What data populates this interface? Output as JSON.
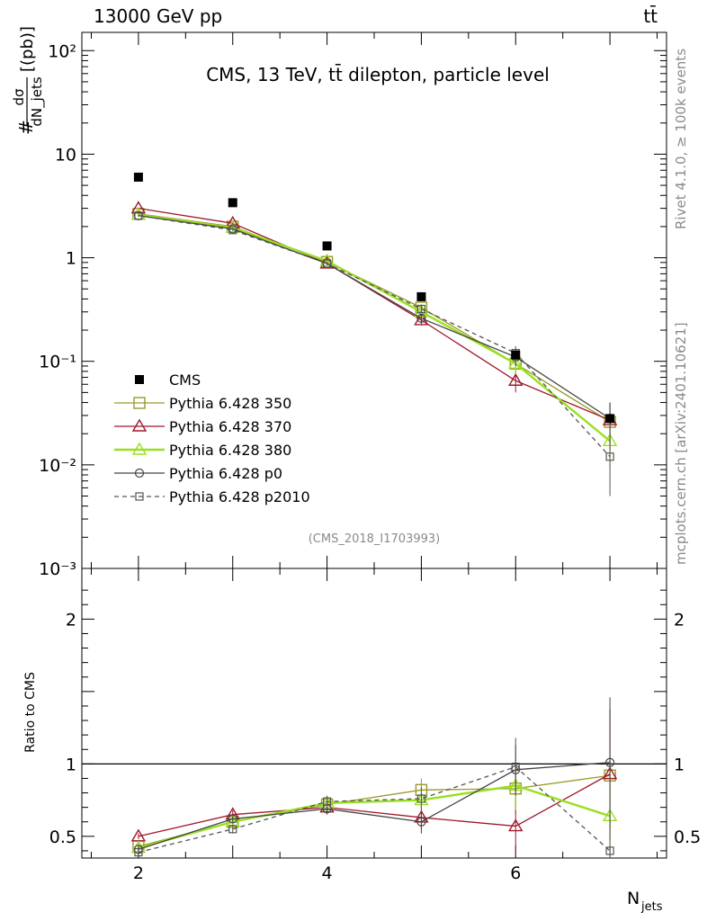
{
  "header": {
    "left": "13000 GeV pp",
    "right": "tt̄"
  },
  "side_labels": {
    "rivet": "Rivet 4.1.0, ≥ 100k events",
    "mcplots": "mcplots.cern.ch [arXiv:2401.10621]"
  },
  "chart_data": [
    {
      "type": "line",
      "panel": "main",
      "title": "CMS, 13 TeV, tt̄ dilepton, particle level",
      "analysis_id": "(CMS_2018_I1703993)",
      "xlabel": "N_jets",
      "ylabel_prefix": "#",
      "ylabel_frac_num": "dσ",
      "ylabel_frac_den": "dN_jets",
      "ylabel_unit": "[(pb)]",
      "yscale": "log",
      "xlim": [
        1.4,
        7.6
      ],
      "ylim": [
        0.001,
        150
      ],
      "ytick_values": [
        0.001,
        0.01,
        0.1,
        1,
        10,
        100
      ],
      "ytick_labels": [
        "10⁻³",
        "10⁻²",
        "10⁻¹",
        "1",
        "10",
        "10²"
      ],
      "x": [
        2,
        3,
        4,
        5,
        6,
        7
      ],
      "series": [
        {
          "name": "CMS",
          "color": "#000000",
          "marker": "filled-square",
          "line": "none",
          "values": [
            6.0,
            3.4,
            1.3,
            0.42,
            0.115,
            0.028
          ],
          "errors": [
            0.2,
            0.12,
            0.05,
            0.02,
            0.006,
            0.003
          ]
        },
        {
          "name": "Pythia 6.428 350",
          "color": "#9a9a2a",
          "marker": "open-square",
          "line": "solid",
          "values": [
            2.65,
            2.0,
            0.91,
            0.33,
            0.095,
            0.026
          ],
          "errors": [
            0.05,
            0.04,
            0.03,
            0.025,
            0.02,
            0.012
          ]
        },
        {
          "name": "Pythia 6.428 370",
          "color": "#a0182c",
          "marker": "open-triangle",
          "line": "solid",
          "values": [
            3.0,
            2.15,
            0.88,
            0.25,
            0.065,
            0.027
          ],
          "errors": [
            0.06,
            0.05,
            0.03,
            0.025,
            0.015,
            0.013
          ]
        },
        {
          "name": "Pythia 6.428 380",
          "color": "#99e020",
          "marker": "open-triangle",
          "line": "solid-thick",
          "values": [
            2.6,
            1.95,
            0.93,
            0.3,
            0.095,
            0.017
          ],
          "errors": [
            0.05,
            0.04,
            0.03,
            0.025,
            0.02,
            0.008
          ]
        },
        {
          "name": "Pythia 6.428 p0",
          "color": "#444444",
          "marker": "open-circle",
          "line": "solid",
          "values": [
            2.55,
            1.9,
            0.88,
            0.26,
            0.11,
            0.028
          ],
          "errors": [
            0.05,
            0.04,
            0.03,
            0.025,
            0.02,
            0.012
          ]
        },
        {
          "name": "Pythia 6.428 p2010",
          "color": "#555555",
          "marker": "small-open-square",
          "line": "dashed",
          "values": [
            2.55,
            1.85,
            0.88,
            0.32,
            0.12,
            0.012
          ],
          "errors": [
            0.05,
            0.04,
            0.03,
            0.025,
            0.02,
            0.007
          ]
        }
      ]
    },
    {
      "type": "line",
      "panel": "ratio",
      "ylabel": "Ratio to CMS",
      "xlabel": "N_jets",
      "xlim": [
        1.4,
        7.6
      ],
      "ylim": [
        0.35,
        2.35
      ],
      "ytick_labels": [
        "0.5",
        "1",
        "2"
      ],
      "ytick_values": [
        0.5,
        1,
        2
      ],
      "xtick_labels": [
        "2",
        "4",
        "6"
      ],
      "xtick_values": [
        2,
        4,
        6
      ],
      "reference_line": 1,
      "x": [
        2,
        3,
        4,
        5,
        6,
        7
      ],
      "series": [
        {
          "name": "Pythia 6.428 350",
          "values": [
            0.43,
            0.6,
            0.72,
            0.82,
            0.83,
            0.92
          ],
          "errors": [
            0.02,
            0.03,
            0.04,
            0.08,
            0.17,
            0.45
          ]
        },
        {
          "name": "Pythia 6.428 370",
          "values": [
            0.5,
            0.65,
            0.7,
            0.63,
            0.57,
            0.93
          ],
          "errors": [
            0.02,
            0.03,
            0.04,
            0.08,
            0.2,
            0.45
          ]
        },
        {
          "name": "Pythia 6.428 380",
          "values": [
            0.42,
            0.6,
            0.73,
            0.75,
            0.85,
            0.64
          ],
          "errors": [
            0.02,
            0.03,
            0.04,
            0.08,
            0.17,
            0.35
          ]
        },
        {
          "name": "Pythia 6.428 p0",
          "values": [
            0.41,
            0.62,
            0.69,
            0.6,
            0.96,
            1.01
          ],
          "errors": [
            0.02,
            0.03,
            0.04,
            0.08,
            0.17,
            0.45
          ]
        },
        {
          "name": "Pythia 6.428 p2010",
          "values": [
            0.39,
            0.55,
            0.74,
            0.76,
            0.98,
            0.4
          ],
          "errors": [
            0.02,
            0.03,
            0.04,
            0.08,
            0.2,
            0.3
          ]
        }
      ]
    }
  ]
}
